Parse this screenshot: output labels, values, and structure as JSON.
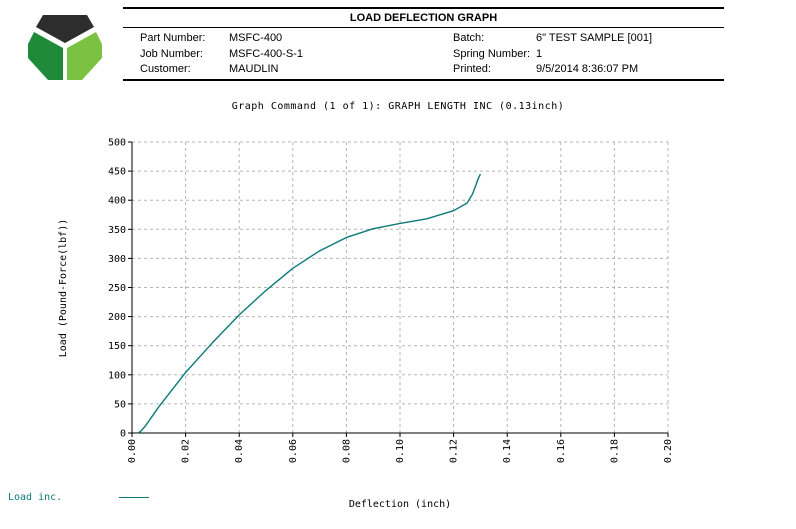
{
  "header": {
    "title": "LOAD DEFLECTION GRAPH",
    "part_number_label": "Part Number:",
    "part_number": "MSFC-400",
    "job_number_label": "Job Number:",
    "job_number": "MSFC-400-S-1",
    "customer_label": "Customer:",
    "customer": "MAUDLIN",
    "batch_label": "Batch:",
    "batch": "6\" TEST SAMPLE [001]",
    "spring_number_label": "Spring Number:",
    "spring_number": "1",
    "printed_label": "Printed:",
    "printed": "9/5/2014 8:36:07 PM"
  },
  "graph_command": "Graph Command (1 of 1): GRAPH LENGTH INC (0.13inch)",
  "legend": {
    "label": "Load inc.",
    "color": "#0b7a77"
  },
  "logo": {
    "colors": [
      "#2d2d2d",
      "#1f8a3a",
      "#7cc242"
    ],
    "icon": "hexagon-logo-icon"
  },
  "chart_data": {
    "type": "line",
    "title": "Graph Command (1 of 1): GRAPH LENGTH INC (0.13inch)",
    "xlabel": "Deflection (inch)",
    "ylabel": "Load (Pound-Force(lbf))",
    "xlim": [
      0,
      0.2
    ],
    "ylim": [
      0,
      500
    ],
    "x_ticks": [
      "0.00",
      "0.02",
      "0.04",
      "0.06",
      "0.08",
      "0.10",
      "0.12",
      "0.14",
      "0.16",
      "0.18",
      "0.20"
    ],
    "y_ticks": [
      "0",
      "50",
      "100",
      "150",
      "200",
      "250",
      "300",
      "350",
      "400",
      "450",
      "500"
    ],
    "grid": true,
    "series": [
      {
        "name": "Load inc.",
        "color": "#0b7a77",
        "x": [
          0.002,
          0.003,
          0.005,
          0.01,
          0.02,
          0.03,
          0.04,
          0.05,
          0.06,
          0.07,
          0.08,
          0.09,
          0.1,
          0.11,
          0.12,
          0.125,
          0.127,
          0.128,
          0.129,
          0.13
        ],
        "y": [
          0,
          2,
          12,
          45,
          104,
          155,
          203,
          245,
          283,
          313,
          336,
          351,
          360,
          368,
          382,
          395,
          410,
          422,
          435,
          445
        ]
      }
    ]
  }
}
